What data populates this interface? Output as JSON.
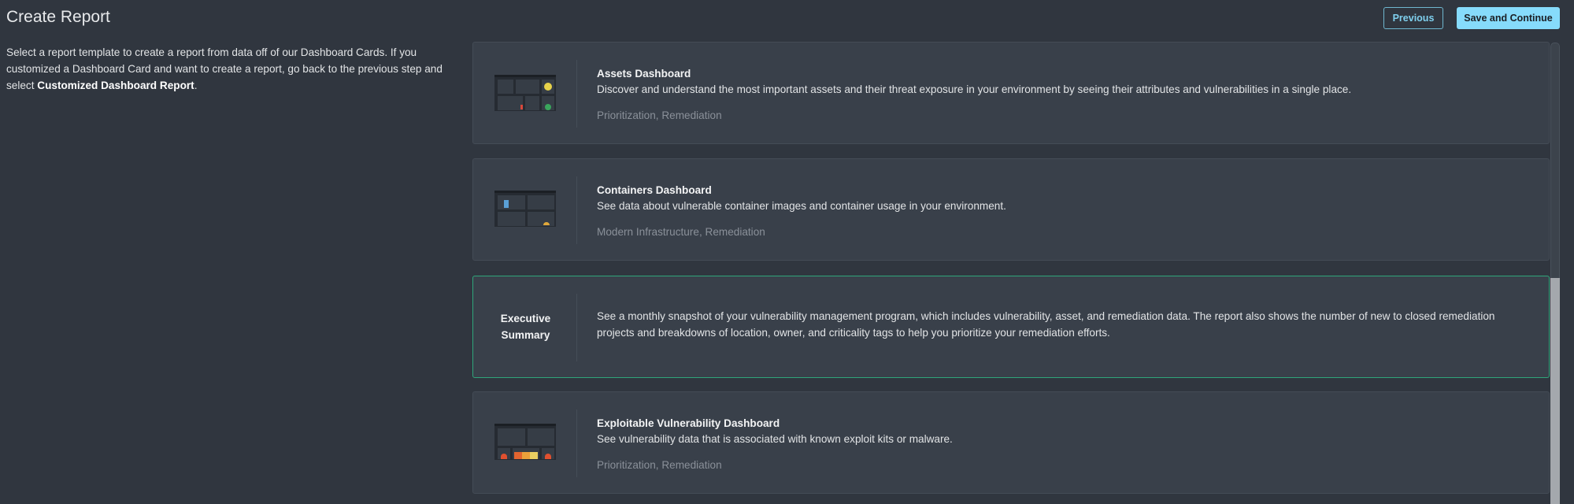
{
  "header": {
    "title": "Create Report",
    "previous_label": "Previous",
    "save_label": "Save and Continue"
  },
  "intro": {
    "text": "Select a report template to create a report from data off of our Dashboard Cards. If you customized a Dashboard Card and want to create a report, go back to the previous step and select ",
    "bold": "Customized Dashboard Report",
    "end": "."
  },
  "accent": {
    "selected_border": "#2fa67a",
    "primary_button": "#86dbfb"
  },
  "templates": [
    {
      "title": "Assets Dashboard",
      "description": "Discover and understand the most important assets and their threat exposure in your environment by seeing their attributes and vulnerabilities in a single place.",
      "tags": "Prioritization, Remediation",
      "icon": "dashboard-thumbnail"
    },
    {
      "title": "Containers Dashboard",
      "description": "See data about vulnerable container images and container usage in your environment.",
      "tags": "Modern Infrastructure, Remediation",
      "icon": "dashboard-thumbnail"
    },
    {
      "title": "Executive Summary",
      "description": "See a monthly snapshot of your vulnerability management program, which includes vulnerability, asset, and remediation data. The report also shows the number of new to closed remediation projects and breakdowns of location, owner, and criticality tags to help you prioritize your remediation efforts.",
      "selected": true
    },
    {
      "title": "Exploitable Vulnerability Dashboard",
      "description": "See vulnerability data that is associated with known exploit kits or malware.",
      "tags": "Prioritization, Remediation",
      "icon": "dashboard-thumbnail"
    }
  ]
}
